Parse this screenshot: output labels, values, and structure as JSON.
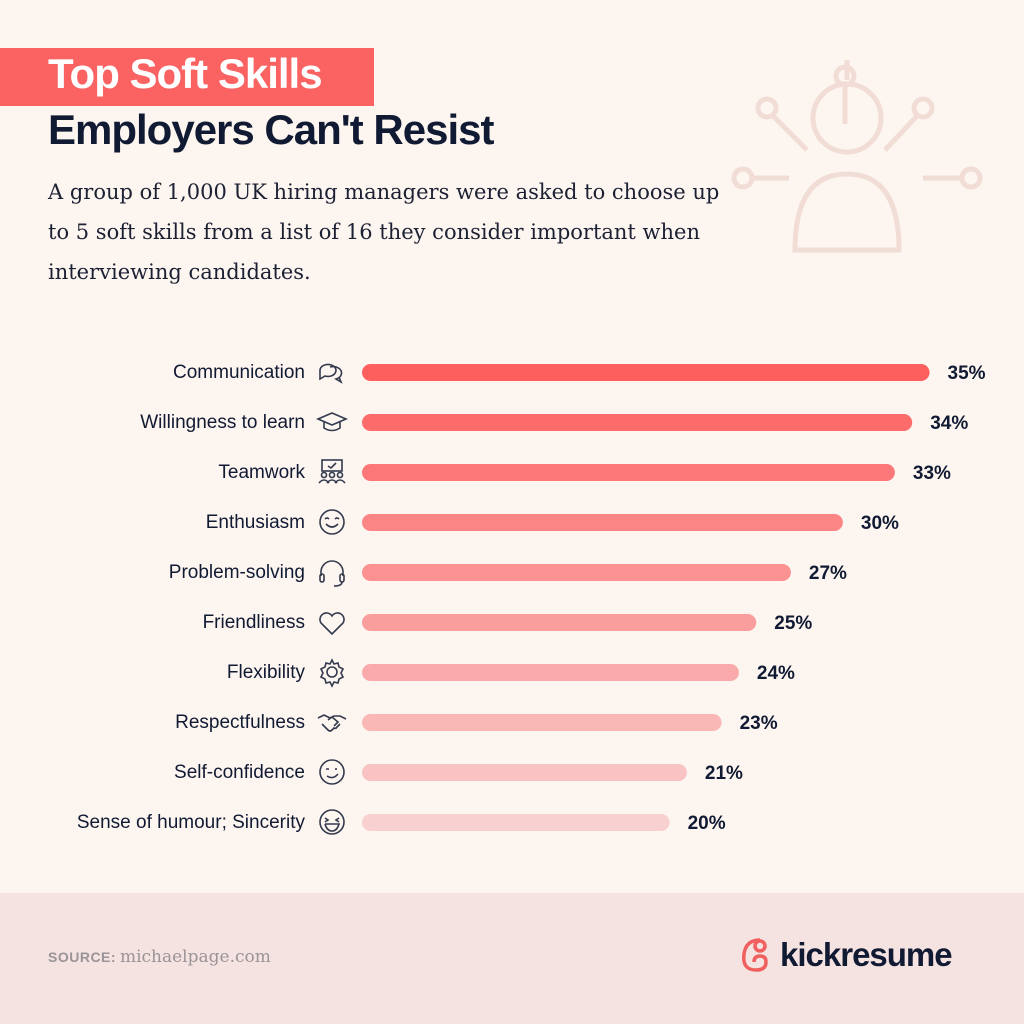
{
  "header": {
    "title_line1": "Top Soft Skills",
    "title_line2": "Employers Can't Resist",
    "subtitle": "A group of 1,000 UK hiring managers were asked to choose up to 5 soft skills from a list of 16 they consider important when interviewing candidates."
  },
  "colors": {
    "accent": "#fb6262",
    "bar_top": "#fd5f5f",
    "bar_bottom": "#f8d0cf",
    "text": "#111a33",
    "footer_bg": "#f5e3e1"
  },
  "chart_data": {
    "type": "bar",
    "orientation": "horizontal",
    "categories": [
      "Communication",
      "Willingness to learn",
      "Teamwork",
      "Enthusiasm",
      "Problem-solving",
      "Friendliness",
      "Flexibility",
      "Respectfulness",
      "Self-confidence",
      "Sense of humour; Sincerity"
    ],
    "values": [
      35,
      34,
      33,
      30,
      27,
      25,
      24,
      23,
      21,
      20
    ],
    "value_labels": [
      "35%",
      "34%",
      "33%",
      "30%",
      "27%",
      "25%",
      "24%",
      "23%",
      "21%",
      "20%"
    ],
    "icons": [
      "speech-bubbles-icon",
      "graduation-cap-icon",
      "team-board-icon",
      "smile-icon",
      "headset-icon",
      "heart-icon",
      "gear-icon",
      "handshake-icon",
      "wink-icon",
      "laugh-icon"
    ],
    "unit": "%"
  },
  "footer": {
    "source_label": "SOURCE:",
    "source_value": "michaelpage.com",
    "brand": "kickresume"
  }
}
